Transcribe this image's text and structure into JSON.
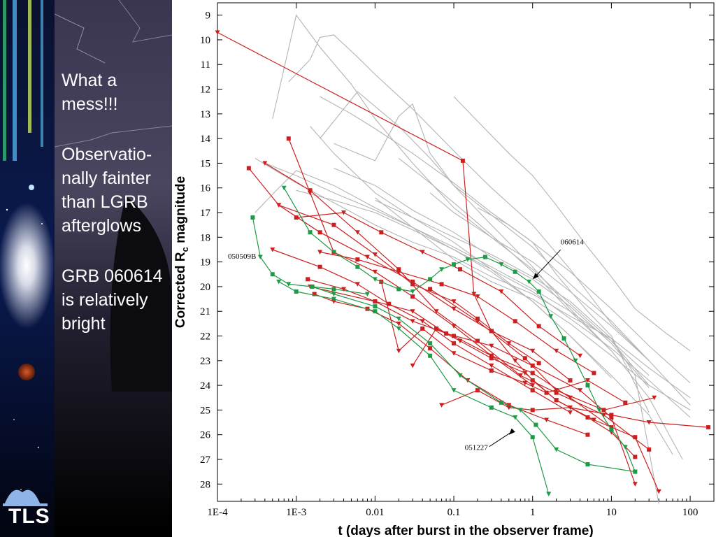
{
  "slide": {
    "bullets": [
      "What a mess!!!",
      "Observatio-nally fainter than LGRB afterglows",
      "GRB 060614 is relatively bright"
    ],
    "logo_text": "TLS"
  },
  "colors": {
    "sidebar_bg": "#000000",
    "long_grb": "#b4b4b4",
    "short_grb": "#cc2020",
    "highlight": "#1f9a46",
    "text": "#ffffff"
  },
  "chart_data": {
    "type": "line",
    "xlabel": "t (days after burst in the observer frame)",
    "ylabel": "Corrected R",
    "ylabel_sub": "c",
    "ylabel_tail": " magnitude",
    "x_scale": "log",
    "xlim": [
      0.0001,
      200
    ],
    "ylim": [
      28.7,
      8.5
    ],
    "y_inverted": true,
    "x_ticks": [
      {
        "value": 0.0001,
        "label": "1E-4"
      },
      {
        "value": 0.001,
        "label": "1E-3"
      },
      {
        "value": 0.01,
        "label": "0.01"
      },
      {
        "value": 0.1,
        "label": "0.1"
      },
      {
        "value": 1,
        "label": "1"
      },
      {
        "value": 10,
        "label": "10"
      },
      {
        "value": 100,
        "label": "100"
      }
    ],
    "y_ticks": [
      9,
      10,
      11,
      12,
      13,
      14,
      15,
      16,
      17,
      18,
      19,
      20,
      21,
      22,
      23,
      24,
      25,
      26,
      27,
      28
    ],
    "annotations": [
      {
        "text": "060614",
        "x": 1.0,
        "y": 19.7
      },
      {
        "text": "050509B",
        "x": 0.00035,
        "y": 18.75
      },
      {
        "text": "051227",
        "x": 0.5,
        "y": 26.0
      }
    ],
    "series": [
      {
        "group": "long",
        "x": [
          0.0003,
          0.001,
          0.003,
          0.01,
          0.03,
          0.1,
          0.3,
          1,
          3,
          10,
          30,
          100
        ],
        "y": [
          14.8,
          15.8,
          16.6,
          17.5,
          18.2,
          18.8,
          19.6,
          20.3,
          21.2,
          22.1,
          23.3,
          24.5
        ]
      },
      {
        "group": "long",
        "x": [
          0.0004,
          0.001,
          0.003,
          0.01,
          0.03,
          0.1,
          0.3,
          1,
          3,
          10,
          30
        ],
        "y": [
          15.0,
          15.5,
          16.2,
          16.9,
          17.6,
          18.4,
          19.2,
          20.1,
          21.0,
          22.2,
          23.6
        ]
      },
      {
        "group": "long",
        "x": [
          0.0005,
          0.001,
          0.002,
          0.005,
          0.01,
          0.03,
          0.1,
          0.3,
          1,
          3,
          10,
          30
        ],
        "y": [
          13.2,
          9.0,
          10.3,
          11.8,
          13.2,
          15.0,
          16.8,
          18.0,
          19.3,
          20.7,
          22.2,
          24.0
        ]
      },
      {
        "group": "long",
        "x": [
          0.0008,
          0.0015,
          0.002,
          0.003,
          0.006,
          0.01,
          0.03,
          0.1,
          0.3,
          1,
          3,
          10,
          30
        ],
        "y": [
          11.7,
          10.8,
          9.9,
          9.8,
          10.7,
          11.4,
          12.8,
          14.5,
          16.0,
          17.5,
          19.3,
          21.5,
          23.0
        ]
      },
      {
        "group": "long",
        "x": [
          0.002,
          0.005,
          0.01,
          0.03,
          0.1,
          0.3,
          1,
          3,
          10,
          30,
          100
        ],
        "y": [
          12.3,
          13.0,
          13.6,
          14.6,
          15.8,
          17.0,
          18.2,
          19.4,
          20.9,
          22.4,
          23.9
        ]
      },
      {
        "group": "long",
        "x": [
          0.003,
          0.01,
          0.02,
          0.03,
          0.05,
          0.1,
          0.3,
          1,
          3,
          10,
          30
        ],
        "y": [
          14.2,
          14.9,
          13.1,
          12.6,
          14.6,
          15.9,
          17.1,
          18.4,
          19.9,
          21.4,
          23.0
        ]
      },
      {
        "group": "long",
        "x": [
          0.1,
          0.2,
          0.5,
          1,
          2,
          5,
          10,
          20,
          50,
          100
        ],
        "y": [
          12.3,
          13.3,
          14.6,
          15.5,
          16.7,
          18.4,
          19.6,
          20.9,
          21.9,
          22.6
        ]
      },
      {
        "group": "long",
        "x": [
          0.001,
          0.003,
          0.01,
          0.03,
          0.1,
          0.3,
          1,
          3,
          10,
          30,
          100
        ],
        "y": [
          16.1,
          16.5,
          17.0,
          17.7,
          18.5,
          19.3,
          20.2,
          21.3,
          22.5,
          23.8,
          25.3
        ]
      },
      {
        "group": "long",
        "x": [
          0.0003,
          0.0006,
          0.001,
          0.003,
          0.01,
          0.03,
          0.1,
          0.3,
          1,
          3,
          10
        ],
        "y": [
          17.0,
          16.0,
          15.3,
          15.9,
          16.8,
          17.6,
          18.5,
          19.4,
          20.6,
          22.0,
          23.7
        ]
      },
      {
        "group": "long",
        "x": [
          0.003,
          0.01,
          0.03,
          0.1,
          0.3,
          1,
          3,
          10,
          30
        ],
        "y": [
          15.2,
          15.9,
          16.9,
          17.8,
          18.8,
          19.7,
          20.8,
          22.3,
          24.1
        ]
      },
      {
        "group": "long",
        "x": [
          0.01,
          0.03,
          0.1,
          0.3,
          1,
          3,
          10,
          30,
          60
        ],
        "y": [
          16.5,
          17.2,
          18.2,
          19.3,
          20.6,
          22.0,
          23.6,
          25.2,
          26.8
        ]
      },
      {
        "group": "long",
        "x": [
          0.02,
          0.05,
          0.1,
          0.3,
          1,
          3,
          10,
          30,
          80
        ],
        "y": [
          14.8,
          15.8,
          16.6,
          17.9,
          19.4,
          21.0,
          22.6,
          24.5,
          27.0
        ]
      },
      {
        "group": "long",
        "x": [
          0.05,
          0.1,
          0.3,
          1,
          3,
          10,
          30,
          100
        ],
        "y": [
          16.2,
          17.0,
          18.0,
          19.0,
          20.2,
          21.6,
          23.0,
          24.8
        ]
      },
      {
        "group": "long",
        "x": [
          0.002,
          0.006,
          0.01,
          0.02,
          0.05,
          0.1,
          0.3,
          1,
          3,
          10
        ],
        "y": [
          14.0,
          12.1,
          12.7,
          13.5,
          14.8,
          15.9,
          17.5,
          19.2,
          20.9,
          22.6
        ]
      },
      {
        "group": "long",
        "x": [
          0.0015,
          0.003,
          0.01,
          0.03,
          0.1,
          0.3,
          1,
          3,
          10,
          20,
          40
        ],
        "y": [
          13.5,
          14.6,
          16.2,
          17.2,
          18.0,
          18.7,
          19.6,
          20.6,
          22.1,
          23.6,
          28.8
        ]
      },
      {
        "group": "long",
        "x": [
          0.01,
          0.03,
          0.1,
          0.3,
          1,
          3,
          10,
          30,
          100
        ],
        "y": [
          16.4,
          17.6,
          18.9,
          19.8,
          20.5,
          21.5,
          22.8,
          24.0,
          25.0
        ]
      },
      {
        "group": "long",
        "x": [
          0.2,
          0.5,
          1,
          2,
          5,
          10,
          30
        ],
        "y": [
          16.8,
          17.5,
          18.2,
          19.5,
          21.0,
          22.0,
          25.1
        ]
      },
      {
        "group": "short",
        "x": [
          0.0001,
          0.13,
          0.18,
          0.3,
          0.6,
          1,
          2,
          5,
          10,
          20
        ],
        "y": [
          9.7,
          14.9,
          20.3,
          21.8,
          23.0,
          23.8,
          24.6,
          25.3,
          25.9,
          26.9
        ]
      },
      {
        "group": "short",
        "x": [
          0.00025,
          0.0006,
          0.002,
          0.008,
          0.03,
          0.1,
          0.3,
          1,
          3
        ],
        "y": [
          15.2,
          16.7,
          17.8,
          18.8,
          19.8,
          20.9,
          21.8,
          22.6,
          23.8
        ]
      },
      {
        "group": "short",
        "x": [
          0.0004,
          0.0015,
          0.006,
          0.02,
          0.06,
          0.2,
          0.7,
          2,
          8,
          30
        ],
        "y": [
          15.0,
          16.1,
          17.8,
          19.3,
          21.0,
          22.2,
          23.6,
          24.3,
          25.2,
          26.6
        ]
      },
      {
        "group": "short",
        "x": [
          0.0008,
          0.0015,
          0.003,
          0.01,
          0.03,
          0.1,
          0.3,
          1
        ],
        "y": [
          14.0,
          16.2,
          18.6,
          19.4,
          20.4,
          21.6,
          22.8,
          24.0
        ]
      },
      {
        "group": "short",
        "x": [
          0.0005,
          0.002,
          0.006,
          0.015,
          0.04,
          0.1,
          0.3,
          1,
          3
        ],
        "y": [
          18.5,
          19.2,
          19.9,
          20.7,
          21.4,
          22.3,
          23.2,
          24.2,
          25.1
        ]
      },
      {
        "group": "short",
        "x": [
          0.0014,
          0.004,
          0.01,
          0.03,
          0.1,
          0.3,
          1,
          3,
          10
        ],
        "y": [
          19.7,
          20.1,
          20.6,
          21.4,
          22.0,
          22.8,
          23.5,
          24.5,
          25.7
        ]
      },
      {
        "group": "short",
        "x": [
          0.0015,
          0.01,
          0.03,
          0.08,
          0.3,
          1,
          4,
          10,
          20
        ],
        "y": [
          20.0,
          20.6,
          21.0,
          21.9,
          22.4,
          23.2,
          24.2,
          25.3,
          28.0
        ]
      },
      {
        "group": "short",
        "x": [
          0.0017,
          0.003,
          0.008,
          0.02,
          0.05,
          0.15,
          0.5,
          1.5,
          5
        ],
        "y": [
          20.3,
          20.6,
          20.9,
          21.5,
          22.5,
          23.8,
          24.8,
          25.4,
          26.0
        ]
      },
      {
        "group": "short",
        "x": [
          0.0006,
          0.003,
          0.01,
          0.03,
          0.1,
          0.2,
          0.5,
          1.2
        ],
        "y": [
          16.7,
          17.5,
          18.7,
          19.9,
          20.6,
          21.3,
          22.3,
          23.1
        ]
      },
      {
        "group": "short",
        "x": [
          0.001,
          0.004,
          0.012,
          0.04,
          0.12,
          0.4,
          1.2,
          4
        ],
        "y": [
          17.2,
          17.0,
          17.8,
          18.6,
          19.3,
          20.2,
          21.6,
          22.8
        ]
      },
      {
        "group": "short",
        "x": [
          0.002,
          0.006,
          0.02,
          0.07,
          0.2,
          0.6,
          2,
          6
        ],
        "y": [
          18.6,
          18.9,
          19.4,
          19.9,
          20.4,
          21.4,
          22.6,
          23.5
        ]
      },
      {
        "group": "short",
        "x": [
          0.012,
          0.02,
          0.04,
          0.1,
          0.3,
          0.8,
          1.5,
          5,
          15
        ],
        "y": [
          19.8,
          22.6,
          21.7,
          22.7,
          23.4,
          23.9,
          24.3,
          23.8,
          24.7
        ]
      },
      {
        "group": "short",
        "x": [
          0.03,
          0.06,
          0.12,
          0.3,
          0.8,
          2,
          6,
          20,
          40
        ],
        "y": [
          23.2,
          21.7,
          22.2,
          22.9,
          23.5,
          24.6,
          25.4,
          26.1,
          28.3
        ]
      },
      {
        "group": "short",
        "x": [
          0.05,
          0.2,
          0.8,
          2,
          8,
          35
        ],
        "y": [
          20.1,
          21.4,
          22.9,
          24.2,
          25.0,
          24.5
        ]
      },
      {
        "group": "short",
        "x": [
          0.07,
          0.2,
          0.5,
          1,
          3,
          10,
          30,
          170
        ],
        "y": [
          24.8,
          24.2,
          24.9,
          25.0,
          24.9,
          25.2,
          25.5,
          25.7
        ]
      },
      {
        "group": "highlight",
        "name": "060614",
        "x": [
          0.0007,
          0.0015,
          0.003,
          0.006,
          0.01,
          0.02,
          0.03,
          0.05,
          0.07,
          0.1,
          0.15,
          0.25,
          0.4,
          0.6,
          0.9,
          1.2,
          1.7,
          2.5,
          3.5,
          5,
          7,
          10,
          15,
          20
        ],
        "y": [
          16.0,
          17.8,
          18.6,
          19.2,
          19.7,
          20.1,
          20.2,
          19.7,
          19.3,
          19.1,
          18.9,
          18.8,
          19.1,
          19.4,
          19.8,
          20.2,
          21.2,
          22.1,
          23.0,
          24.0,
          25.0,
          25.8,
          26.5,
          27.5
        ]
      },
      {
        "group": "highlight",
        "name": "050509B",
        "x": [
          0.00028,
          0.00035,
          0.0005,
          0.0008,
          0.003,
          0.008
        ],
        "y": [
          17.2,
          18.8,
          19.5,
          19.9,
          20.1,
          20.3
        ]
      },
      {
        "group": "highlight",
        "name": "051227",
        "x": [
          0.0006,
          0.001,
          0.003,
          0.01,
          0.02,
          0.05,
          0.1,
          0.3,
          0.6,
          1,
          1.6
        ],
        "y": [
          19.8,
          20.2,
          20.5,
          21.0,
          21.7,
          22.8,
          24.2,
          24.9,
          25.3,
          26.1,
          28.4
        ]
      },
      {
        "group": "highlight",
        "x": [
          0.0016,
          0.003,
          0.01,
          0.02,
          0.05,
          0.12,
          0.4,
          0.7,
          1.1,
          2,
          5,
          20
        ],
        "y": [
          20.0,
          20.3,
          20.8,
          21.3,
          22.3,
          23.6,
          24.7,
          25.0,
          25.6,
          26.6,
          27.2,
          27.5
        ]
      }
    ]
  }
}
